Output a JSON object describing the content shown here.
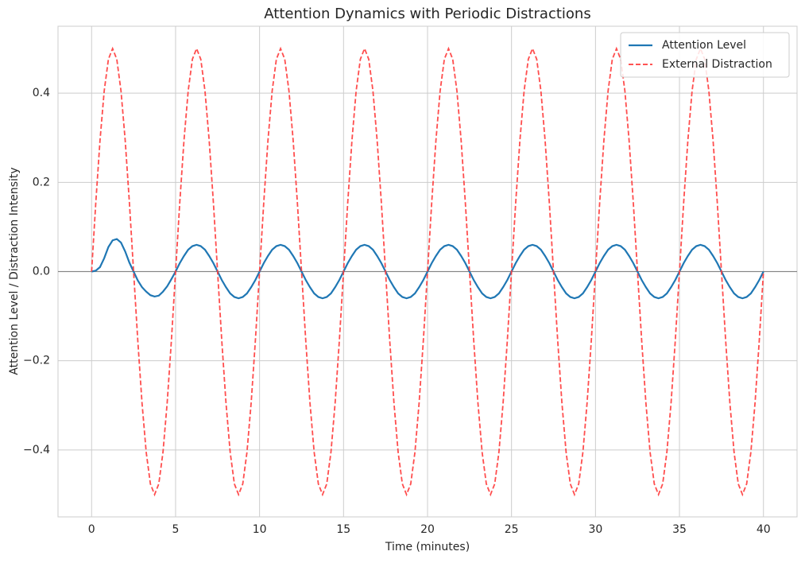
{
  "chart_data": {
    "type": "line",
    "title": "Attention Dynamics with Periodic Distractions",
    "x_label": "Time (minutes)",
    "y_label": "Attention Level / Distraction Intensity",
    "xlim": [
      -2,
      42
    ],
    "xticks": [
      0,
      5,
      10,
      15,
      20,
      25,
      30,
      35,
      40
    ],
    "ylim": [
      -0.55,
      0.55
    ],
    "yticks": [
      {
        "value": -0.4,
        "label": "−0.4"
      },
      {
        "value": -0.2,
        "label": "−0.2"
      },
      {
        "value": 0,
        "label": "0.0"
      },
      {
        "value": 0.2,
        "label": "0.2"
      },
      {
        "value": 0.4,
        "label": "0.4"
      }
    ],
    "grid": true,
    "reference_line": 0,
    "legend": "upper right",
    "x": [
      0,
      0.25,
      0.5,
      0.75,
      1,
      1.25,
      1.5,
      1.75,
      2,
      2.25,
      2.5,
      2.75,
      3,
      3.25,
      3.5,
      3.75,
      4,
      4.25,
      4.5,
      4.75,
      5,
      5.25,
      5.5,
      5.75,
      6,
      6.25,
      6.5,
      6.75,
      7,
      7.25,
      7.5,
      7.75,
      8,
      8.25,
      8.5,
      8.75,
      9,
      9.25,
      9.5,
      9.75,
      10,
      10.25,
      10.5,
      10.75,
      11,
      11.25,
      11.5,
      11.75,
      12,
      12.25,
      12.5,
      12.75,
      13,
      13.25,
      13.5,
      13.75,
      14,
      14.25,
      14.5,
      14.75,
      15,
      15.25,
      15.5,
      15.75,
      16,
      16.25,
      16.5,
      16.75,
      17,
      17.25,
      17.5,
      17.75,
      18,
      18.25,
      18.5,
      18.75,
      19,
      19.25,
      19.5,
      19.75,
      20,
      20.25,
      20.5,
      20.75,
      21,
      21.25,
      21.5,
      21.75,
      22,
      22.25,
      22.5,
      22.75,
      23,
      23.25,
      23.5,
      23.75,
      24,
      24.25,
      24.5,
      24.75,
      25,
      25.25,
      25.5,
      25.75,
      26,
      26.25,
      26.5,
      26.75,
      27,
      27.25,
      27.5,
      27.75,
      28,
      28.25,
      28.5,
      28.75,
      29,
      29.25,
      29.5,
      29.75,
      30,
      30.25,
      30.5,
      30.75,
      31,
      31.25,
      31.5,
      31.75,
      32,
      32.25,
      32.5,
      32.75,
      33,
      33.25,
      33.5,
      33.75,
      34,
      34.25,
      34.5,
      34.75,
      35,
      35.25,
      35.5,
      35.75,
      36,
      36.25,
      36.5,
      36.75,
      37,
      37.25,
      37.5,
      37.75,
      38,
      38.25,
      38.5,
      38.75,
      39,
      39.25,
      39.5,
      39.75,
      40
    ],
    "series": [
      {
        "name": "Attention Level",
        "color": "#1f77b4",
        "dash": false,
        "values": [
          0,
          0.002,
          0.01,
          0.03,
          0.055,
          0.07,
          0.073,
          0.065,
          0.045,
          0.02,
          0,
          -0.02,
          -0.035,
          -0.045,
          -0.053,
          -0.056,
          -0.054,
          -0.045,
          -0.033,
          -0.017,
          0,
          0.019,
          0.035,
          0.049,
          0.057,
          0.06,
          0.057,
          0.049,
          0.035,
          0.019,
          0,
          -0.019,
          -0.035,
          -0.049,
          -0.057,
          -0.06,
          -0.057,
          -0.049,
          -0.035,
          -0.019,
          0,
          0.019,
          0.035,
          0.049,
          0.057,
          0.06,
          0.057,
          0.049,
          0.035,
          0.019,
          0,
          -0.019,
          -0.035,
          -0.049,
          -0.057,
          -0.06,
          -0.057,
          -0.049,
          -0.035,
          -0.019,
          0,
          0.019,
          0.035,
          0.049,
          0.057,
          0.06,
          0.057,
          0.049,
          0.035,
          0.019,
          0,
          -0.019,
          -0.035,
          -0.049,
          -0.057,
          -0.06,
          -0.057,
          -0.049,
          -0.035,
          -0.019,
          0,
          0.019,
          0.035,
          0.049,
          0.057,
          0.06,
          0.057,
          0.049,
          0.035,
          0.019,
          0,
          -0.019,
          -0.035,
          -0.049,
          -0.057,
          -0.06,
          -0.057,
          -0.049,
          -0.035,
          -0.019,
          0,
          0.019,
          0.035,
          0.049,
          0.057,
          0.06,
          0.057,
          0.049,
          0.035,
          0.019,
          0,
          -0.019,
          -0.035,
          -0.049,
          -0.057,
          -0.06,
          -0.057,
          -0.049,
          -0.035,
          -0.019,
          0,
          0.019,
          0.035,
          0.049,
          0.057,
          0.06,
          0.057,
          0.049,
          0.035,
          0.019,
          0,
          -0.019,
          -0.035,
          -0.049,
          -0.057,
          -0.06,
          -0.057,
          -0.049,
          -0.035,
          -0.019,
          0,
          0.019,
          0.035,
          0.049,
          0.057,
          0.06,
          0.057,
          0.049,
          0.035,
          0.019,
          0,
          -0.019,
          -0.035,
          -0.049,
          -0.057,
          -0.06,
          -0.057,
          -0.049,
          -0.035,
          -0.019,
          0
        ]
      },
      {
        "name": "External Distraction",
        "color": "#ff3b3b",
        "dash": true,
        "values": [
          0,
          0.155,
          0.294,
          0.405,
          0.476,
          0.5,
          0.476,
          0.405,
          0.294,
          0.155,
          0,
          -0.155,
          -0.294,
          -0.405,
          -0.476,
          -0.5,
          -0.476,
          -0.405,
          -0.294,
          -0.155,
          0,
          0.155,
          0.294,
          0.405,
          0.476,
          0.5,
          0.476,
          0.405,
          0.294,
          0.155,
          0,
          -0.155,
          -0.294,
          -0.405,
          -0.476,
          -0.5,
          -0.476,
          -0.405,
          -0.294,
          -0.155,
          0,
          0.155,
          0.294,
          0.405,
          0.476,
          0.5,
          0.476,
          0.405,
          0.294,
          0.155,
          0,
          -0.155,
          -0.294,
          -0.405,
          -0.476,
          -0.5,
          -0.476,
          -0.405,
          -0.294,
          -0.155,
          0,
          0.155,
          0.294,
          0.405,
          0.476,
          0.5,
          0.476,
          0.405,
          0.294,
          0.155,
          0,
          -0.155,
          -0.294,
          -0.405,
          -0.476,
          -0.5,
          -0.476,
          -0.405,
          -0.294,
          -0.155,
          0,
          0.155,
          0.294,
          0.405,
          0.476,
          0.5,
          0.476,
          0.405,
          0.294,
          0.155,
          0,
          -0.155,
          -0.294,
          -0.405,
          -0.476,
          -0.5,
          -0.476,
          -0.405,
          -0.294,
          -0.155,
          0,
          0.155,
          0.294,
          0.405,
          0.476,
          0.5,
          0.476,
          0.405,
          0.294,
          0.155,
          0,
          -0.155,
          -0.294,
          -0.405,
          -0.476,
          -0.5,
          -0.476,
          -0.405,
          -0.294,
          -0.155,
          0,
          0.155,
          0.294,
          0.405,
          0.476,
          0.5,
          0.476,
          0.405,
          0.294,
          0.155,
          0,
          -0.155,
          -0.294,
          -0.405,
          -0.476,
          -0.5,
          -0.476,
          -0.405,
          -0.294,
          -0.155,
          0,
          0.155,
          0.294,
          0.405,
          0.476,
          0.5,
          0.476,
          0.405,
          0.294,
          0.155,
          0,
          -0.155,
          -0.294,
          -0.405,
          -0.476,
          -0.5,
          -0.476,
          -0.405,
          -0.294,
          -0.155,
          0
        ]
      }
    ]
  }
}
